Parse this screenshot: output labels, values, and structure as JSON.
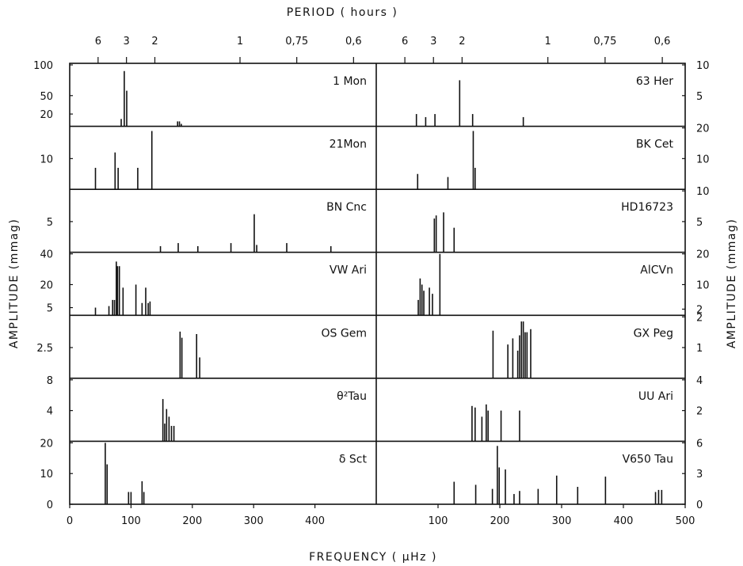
{
  "chart_data": {
    "type": "bar",
    "subtype": "amplitude spectra, multi-panel stick plot",
    "top_axis_label": "PERIOD ( hours )",
    "top_tick_labels": [
      "6",
      "3",
      "2",
      "1",
      "0,75",
      "0,6"
    ],
    "period_ticks_hours": [
      6,
      3,
      2,
      1,
      0.75,
      0.6
    ],
    "xlabel": "FREQUENCY ( µHz )",
    "left_ylabel": "AMPLITUDE (mmag)",
    "right_ylabel": "AMPLITUDE (mmag)",
    "left_xticks": [
      0,
      100,
      200,
      300,
      400
    ],
    "right_xticks": [
      100,
      200,
      300,
      400,
      500
    ],
    "left_xlim": [
      0,
      500
    ],
    "right_xlim": [
      0,
      500
    ],
    "grid": false,
    "left_panels": [
      {
        "name": "1 Mon",
        "ylim": [
          0,
          100
        ],
        "ytick_labels": [
          "100",
          "50",
          "20"
        ],
        "ytick_values": [
          100,
          50,
          20
        ],
        "lines": [
          [
            84,
            12
          ],
          [
            89,
            90
          ],
          [
            93,
            58
          ],
          [
            176,
            8
          ],
          [
            179,
            8
          ],
          [
            182,
            4
          ]
        ]
      },
      {
        "name": "21Mon",
        "ylim": [
          0,
          20
        ],
        "ytick_labels": [
          "10"
        ],
        "ytick_values": [
          10
        ],
        "lines": [
          [
            42,
            7
          ],
          [
            74,
            12
          ],
          [
            79,
            7
          ],
          [
            111,
            7
          ],
          [
            134,
            19
          ]
        ]
      },
      {
        "name": "BN Cnc",
        "ylim": [
          0,
          10
        ],
        "ytick_labels": [
          "5"
        ],
        "ytick_values": [
          5
        ],
        "lines": [
          [
            148,
            1
          ],
          [
            177,
            1.5
          ],
          [
            209,
            1
          ],
          [
            263,
            1.5
          ],
          [
            301,
            6.2
          ],
          [
            305,
            1.2
          ],
          [
            354,
            1.5
          ],
          [
            426,
            1
          ]
        ]
      },
      {
        "name": "VW Ari",
        "ylim": [
          0,
          40
        ],
        "ytick_labels": [
          "40",
          "20",
          "5"
        ],
        "ytick_values": [
          40,
          20,
          5
        ],
        "lines": [
          [
            42,
            5
          ],
          [
            64,
            6
          ],
          [
            70,
            10
          ],
          [
            73,
            10
          ],
          [
            76,
            35
          ],
          [
            78,
            32
          ],
          [
            81,
            32
          ],
          [
            87,
            18
          ],
          [
            108,
            20
          ],
          [
            118,
            8
          ],
          [
            124,
            18
          ],
          [
            128,
            8
          ],
          [
            131,
            9
          ]
        ]
      },
      {
        "name": "OS Gem",
        "ylim": [
          0,
          5
        ],
        "ytick_labels": [
          "2.5"
        ],
        "ytick_values": [
          2.5
        ],
        "lines": [
          [
            180,
            3.8
          ],
          [
            183,
            3.3
          ],
          [
            207,
            3.6
          ],
          [
            212,
            1.7
          ]
        ]
      },
      {
        "name": "θ²Tau",
        "ylim": [
          0,
          8
        ],
        "ytick_labels": [
          "8",
          "4"
        ],
        "ytick_values": [
          8,
          4
        ],
        "lines": [
          [
            152,
            5.5
          ],
          [
            155,
            2.3
          ],
          [
            158,
            4.2
          ],
          [
            162,
            3.2
          ],
          [
            166,
            2
          ],
          [
            170,
            2
          ]
        ]
      },
      {
        "name": "δ Sct",
        "ylim": [
          0,
          20
        ],
        "ytick_labels": [
          "20",
          "10",
          "0"
        ],
        "ytick_values": [
          20,
          10,
          0
        ],
        "lines": [
          [
            58,
            20
          ],
          [
            61,
            13
          ],
          [
            96,
            4
          ],
          [
            100,
            4
          ],
          [
            118,
            7.5
          ],
          [
            121,
            4
          ]
        ]
      }
    ],
    "right_panels": [
      {
        "name": "63 Her",
        "ylim": [
          0,
          10
        ],
        "ytick_labels": [
          "10",
          "5"
        ],
        "ytick_values": [
          10,
          5
        ],
        "lines": [
          [
            65,
            2
          ],
          [
            80,
            1.5
          ],
          [
            95,
            2
          ],
          [
            135,
            7.5
          ],
          [
            156,
            2
          ],
          [
            238,
            1.5
          ]
        ]
      },
      {
        "name": "BK Cet",
        "ylim": [
          0,
          20
        ],
        "ytick_labels": [
          "20",
          "10"
        ],
        "ytick_values": [
          20,
          10
        ],
        "lines": [
          [
            67,
            5
          ],
          [
            116,
            4
          ],
          [
            157,
            19
          ],
          [
            160,
            7
          ]
        ]
      },
      {
        "name": "HD16723",
        "ylim": [
          0,
          10
        ],
        "ytick_labels": [
          "10",
          "5"
        ],
        "ytick_values": [
          10,
          5
        ],
        "lines": [
          [
            94,
            5.5
          ],
          [
            97,
            6
          ],
          [
            109,
            6.5
          ],
          [
            126,
            4
          ]
        ]
      },
      {
        "name": "AlCVn",
        "ylim": [
          0,
          20
        ],
        "ytick_labels": [
          "20",
          "10",
          "2"
        ],
        "ytick_values": [
          20,
          10,
          2
        ],
        "lines": [
          [
            68,
            5
          ],
          [
            71,
            12
          ],
          [
            74,
            10
          ],
          [
            77,
            8
          ],
          [
            86,
            9
          ],
          [
            91,
            7
          ],
          [
            103,
            20
          ]
        ]
      },
      {
        "name": "GX Peg",
        "ylim": [
          0,
          2
        ],
        "ytick_labels": [
          "2",
          "1"
        ],
        "ytick_values": [
          2,
          1
        ],
        "lines": [
          [
            189,
            1.55
          ],
          [
            213,
            1.1
          ],
          [
            221,
            1.3
          ],
          [
            229,
            0.9
          ],
          [
            232,
            1.4
          ],
          [
            235,
            1.85
          ],
          [
            238,
            1.85
          ],
          [
            241,
            1.5
          ],
          [
            244,
            1.5
          ],
          [
            250,
            1.6
          ]
        ]
      },
      {
        "name": "UU Ari",
        "ylim": [
          0,
          4
        ],
        "ytick_labels": [
          "4",
          "2"
        ],
        "ytick_values": [
          4,
          2
        ],
        "lines": [
          [
            155,
            2.3
          ],
          [
            160,
            2.2
          ],
          [
            171,
            1.6
          ],
          [
            178,
            2.4
          ],
          [
            181,
            2
          ],
          [
            202,
            2
          ],
          [
            232,
            2
          ]
        ]
      },
      {
        "name": "V650 Tau",
        "ylim": [
          0,
          6
        ],
        "ytick_labels": [
          "6",
          "3",
          "0"
        ],
        "ytick_values": [
          6,
          3,
          0
        ],
        "lines": [
          [
            126,
            2.2
          ],
          [
            161,
            1.9
          ],
          [
            188,
            1.5
          ],
          [
            196,
            5.7
          ],
          [
            199,
            3.6
          ],
          [
            209,
            3.4
          ],
          [
            223,
            1
          ],
          [
            232,
            1.3
          ],
          [
            262,
            1.5
          ],
          [
            292,
            2.8
          ],
          [
            326,
            1.7
          ],
          [
            371,
            2.7
          ],
          [
            452,
            1.2
          ],
          [
            457,
            1.4
          ],
          [
            462,
            1.4
          ]
        ]
      }
    ]
  }
}
